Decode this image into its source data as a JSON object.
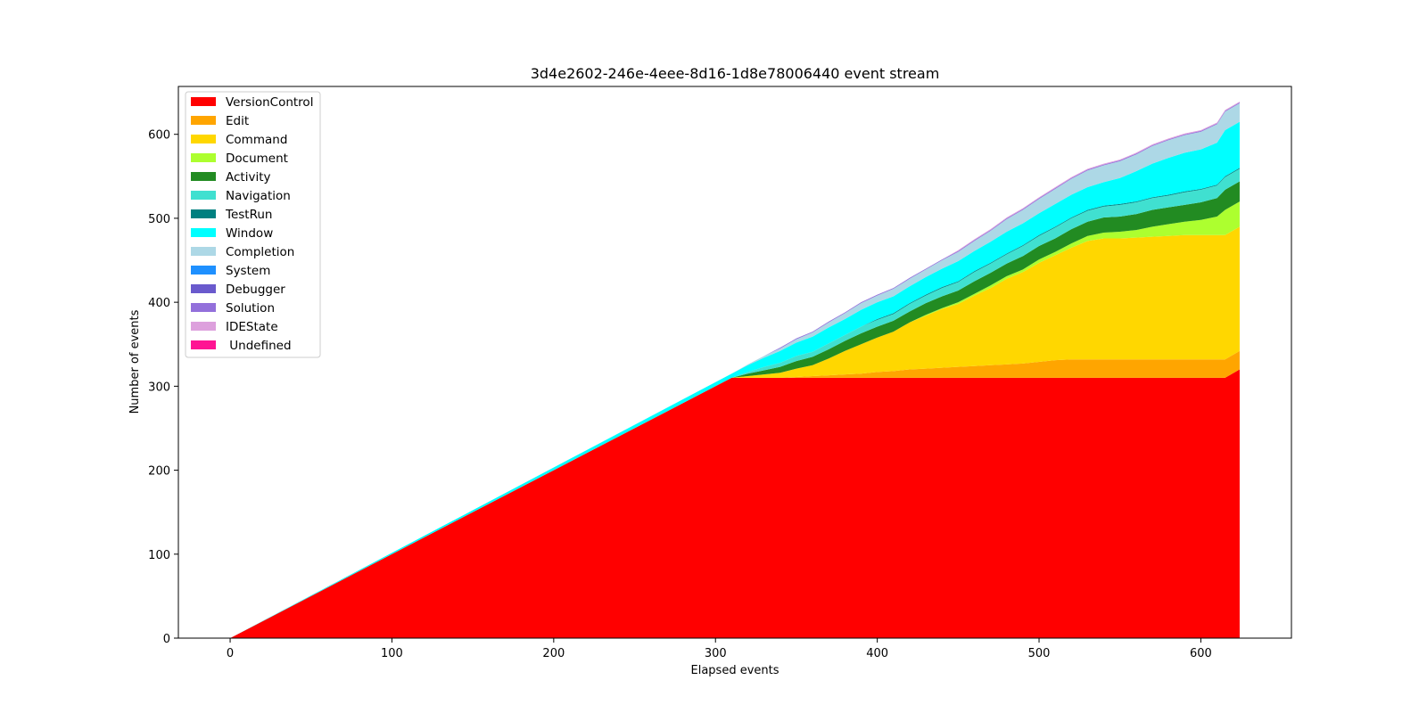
{
  "chart_data": {
    "type": "area",
    "stacked": true,
    "title": "3d4e2602-246e-4eee-8d16-1d8e78006440 event stream",
    "xlabel": "Elapsed events",
    "ylabel": "Number of events",
    "xlim": [
      -32,
      656
    ],
    "ylim": [
      0,
      657
    ],
    "xticks": [
      0,
      100,
      200,
      300,
      400,
      500,
      600
    ],
    "yticks": [
      0,
      100,
      200,
      300,
      400,
      500,
      600
    ],
    "grid": false,
    "legend_position": "upper-left",
    "x": [
      0,
      310,
      320,
      330,
      340,
      350,
      360,
      370,
      380,
      390,
      400,
      410,
      420,
      430,
      440,
      450,
      460,
      470,
      480,
      490,
      500,
      510,
      520,
      530,
      540,
      550,
      560,
      570,
      580,
      590,
      600,
      610,
      615,
      624
    ],
    "series": [
      {
        "name": "VersionControl",
        "color": "#ff0000",
        "values": [
          0,
          310,
          310,
          310,
          310,
          310,
          310,
          310,
          310,
          310,
          310,
          310,
          310,
          310,
          310,
          310,
          310,
          310,
          310,
          310,
          310,
          310,
          310,
          310,
          310,
          310,
          310,
          310,
          310,
          310,
          310,
          310,
          310,
          320
        ]
      },
      {
        "name": "Edit",
        "color": "#ffa500",
        "values": [
          0,
          0,
          0,
          0,
          0,
          1,
          2,
          3,
          4,
          5,
          7,
          8,
          10,
          11,
          12,
          13,
          14,
          15,
          16,
          17,
          19,
          21,
          22,
          22,
          22,
          22,
          22,
          22,
          22,
          22,
          22,
          22,
          22,
          22
        ]
      },
      {
        "name": "Command",
        "color": "#ffd700",
        "values": [
          0,
          0,
          2,
          4,
          6,
          10,
          13,
          20,
          28,
          35,
          41,
          47,
          56,
          63,
          70,
          75,
          84,
          92,
          102,
          109,
          118,
          125,
          133,
          141,
          144,
          144,
          145,
          146,
          147,
          148,
          148,
          148,
          148,
          148
        ]
      },
      {
        "name": "Document",
        "color": "#adff2f",
        "values": [
          0,
          0,
          0,
          0,
          0,
          0,
          0,
          0,
          0,
          0,
          0,
          0,
          0,
          1,
          1,
          2,
          2,
          3,
          3,
          3,
          4,
          4,
          5,
          6,
          7,
          8,
          9,
          12,
          14,
          16,
          18,
          22,
          30,
          30
        ]
      },
      {
        "name": "Activity",
        "color": "#228b22",
        "values": [
          0,
          0,
          3,
          5,
          7,
          9,
          10,
          11,
          12,
          13,
          13,
          13,
          13,
          14,
          14,
          14,
          15,
          15,
          15,
          16,
          16,
          16,
          17,
          17,
          18,
          18,
          19,
          20,
          20,
          20,
          21,
          22,
          24,
          24
        ]
      },
      {
        "name": "Navigation",
        "color": "#40e0d0",
        "values": [
          0,
          0,
          2,
          4,
          5,
          6,
          6,
          7,
          7,
          8,
          8,
          8,
          9,
          9,
          10,
          10,
          11,
          11,
          11,
          12,
          12,
          13,
          13,
          13,
          13,
          14,
          14,
          14,
          14,
          15,
          15,
          15,
          15,
          15
        ]
      },
      {
        "name": "TestRun",
        "color": "#008080",
        "values": [
          0,
          0,
          0,
          0,
          0,
          0,
          0,
          0,
          0,
          0,
          1,
          1,
          1,
          1,
          1,
          1,
          1,
          1,
          1,
          1,
          1,
          1,
          1,
          1,
          1,
          1,
          1,
          1,
          1,
          1,
          1,
          1,
          1,
          1
        ]
      },
      {
        "name": "Window",
        "color": "#00ffff",
        "values": [
          0,
          5,
          8,
          11,
          14,
          16,
          18,
          19,
          19,
          20,
          20,
          20,
          20,
          21,
          22,
          24,
          24,
          25,
          26,
          26,
          26,
          27,
          27,
          27,
          28,
          31,
          36,
          40,
          44,
          46,
          47,
          50,
          55,
          55
        ]
      },
      {
        "name": "Completion",
        "color": "#add8e6",
        "values": [
          0,
          0,
          1,
          2,
          3,
          4,
          5,
          6,
          7,
          8,
          8,
          9,
          9,
          9,
          10,
          11,
          12,
          13,
          15,
          16,
          17,
          18,
          19,
          20,
          20,
          20,
          20,
          21,
          21,
          21,
          21,
          22,
          22,
          22
        ]
      },
      {
        "name": "System",
        "color": "#1e90ff",
        "values": [
          0,
          0,
          0,
          0,
          0,
          0,
          0,
          0,
          0,
          0,
          0,
          0,
          0,
          0,
          0,
          0,
          0,
          0,
          0,
          0,
          0,
          0,
          0,
          0,
          0,
          0,
          0,
          0,
          0,
          0,
          0,
          0,
          0,
          0
        ]
      },
      {
        "name": "Debugger",
        "color": "#6a5acd",
        "values": [
          0,
          0,
          0,
          0,
          0,
          0,
          0,
          0,
          0,
          0,
          0,
          0,
          0,
          0,
          0,
          0,
          0,
          0,
          0,
          0,
          0,
          0,
          0,
          0,
          0,
          0,
          0,
          0,
          0,
          0,
          0,
          0,
          0,
          0
        ]
      },
      {
        "name": "Solution",
        "color": "#9370db",
        "values": [
          0,
          0,
          0,
          0,
          1,
          1,
          1,
          1,
          1,
          1,
          1,
          1,
          1,
          1,
          1,
          1,
          1,
          1,
          1,
          1,
          1,
          1,
          1,
          1,
          1,
          1,
          1,
          1,
          1,
          1,
          1,
          1,
          1,
          1
        ]
      },
      {
        "name": "IDEState",
        "color": "#dda0dd",
        "values": [
          0,
          0,
          0,
          0,
          0,
          0,
          0,
          0,
          0,
          0,
          0,
          0,
          0,
          0,
          0,
          1,
          1,
          1,
          1,
          1,
          1,
          1,
          1,
          1,
          1,
          1,
          1,
          1,
          1,
          1,
          1,
          1,
          1,
          1
        ]
      },
      {
        "name": " Undefined",
        "color": "#ff1493",
        "values": [
          0,
          0,
          0,
          0,
          0,
          0,
          0,
          0,
          0,
          0,
          0,
          0,
          0,
          0,
          0,
          0,
          0,
          0,
          0,
          0,
          0,
          0,
          0,
          0,
          0,
          0,
          0,
          0,
          0,
          0,
          0,
          0,
          0,
          0
        ]
      }
    ]
  }
}
